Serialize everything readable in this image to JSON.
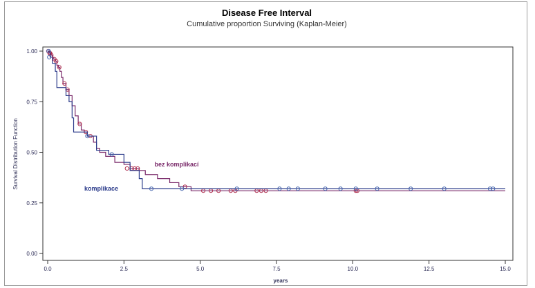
{
  "chart_data": {
    "type": "line",
    "title": "Disease Free Interval",
    "subtitle": "Cumulative proportion Surviving (Kaplan-Meier)",
    "xlabel": "years",
    "ylabel": "Survival Distribution Function",
    "xlim": [
      0,
      15
    ],
    "ylim": [
      0,
      1
    ],
    "x_ticks": [
      "0.0",
      "2.5",
      "5.0",
      "7.5",
      "10.0",
      "12.5",
      "15.0"
    ],
    "y_ticks": [
      "0.00",
      "0.25",
      "0.50",
      "0.75",
      "1.00"
    ],
    "grid": false,
    "series": [
      {
        "name": "bez komplikací",
        "color": "#7a2a6a",
        "marker_color": "#b03050",
        "steps": [
          [
            0,
            1.0
          ],
          [
            0.05,
            0.99
          ],
          [
            0.1,
            0.98
          ],
          [
            0.15,
            0.97
          ],
          [
            0.2,
            0.96
          ],
          [
            0.25,
            0.95
          ],
          [
            0.3,
            0.93
          ],
          [
            0.35,
            0.92
          ],
          [
            0.4,
            0.9
          ],
          [
            0.45,
            0.87
          ],
          [
            0.5,
            0.84
          ],
          [
            0.6,
            0.81
          ],
          [
            0.7,
            0.78
          ],
          [
            0.8,
            0.73
          ],
          [
            0.9,
            0.68
          ],
          [
            1.0,
            0.64
          ],
          [
            1.1,
            0.61
          ],
          [
            1.2,
            0.6
          ],
          [
            1.3,
            0.58
          ],
          [
            1.5,
            0.55
          ],
          [
            1.6,
            0.52
          ],
          [
            1.7,
            0.5
          ],
          [
            1.9,
            0.48
          ],
          [
            2.2,
            0.45
          ],
          [
            2.5,
            0.44
          ],
          [
            2.7,
            0.42
          ],
          [
            3.0,
            0.41
          ],
          [
            3.2,
            0.39
          ],
          [
            3.6,
            0.37
          ],
          [
            4.0,
            0.35
          ],
          [
            4.3,
            0.33
          ],
          [
            4.7,
            0.31
          ],
          [
            15.0,
            0.31
          ]
        ],
        "censored": [
          [
            0.02,
            1.0
          ],
          [
            0.06,
            0.99
          ],
          [
            0.08,
            0.99
          ],
          [
            0.12,
            0.98
          ],
          [
            0.22,
            0.96
          ],
          [
            0.28,
            0.95
          ],
          [
            0.38,
            0.92
          ],
          [
            0.55,
            0.84
          ],
          [
            0.65,
            0.81
          ],
          [
            1.05,
            0.64
          ],
          [
            1.25,
            0.6
          ],
          [
            1.4,
            0.58
          ],
          [
            2.6,
            0.42
          ],
          [
            2.75,
            0.42
          ],
          [
            2.85,
            0.42
          ],
          [
            2.95,
            0.42
          ],
          [
            4.5,
            0.33
          ],
          [
            5.1,
            0.31
          ],
          [
            5.35,
            0.31
          ],
          [
            5.6,
            0.31
          ],
          [
            6.0,
            0.31
          ],
          [
            6.15,
            0.31
          ],
          [
            6.85,
            0.31
          ],
          [
            7.0,
            0.31
          ],
          [
            7.15,
            0.31
          ],
          [
            10.1,
            0.31
          ],
          [
            10.15,
            0.31
          ]
        ]
      },
      {
        "name": "komplikace",
        "color": "#2a3a8a",
        "marker_color": "#4a6ab0",
        "steps": [
          [
            0,
            1.0
          ],
          [
            0.08,
            0.97
          ],
          [
            0.15,
            0.94
          ],
          [
            0.25,
            0.9
          ],
          [
            0.3,
            0.82
          ],
          [
            0.6,
            0.78
          ],
          [
            0.7,
            0.75
          ],
          [
            0.8,
            0.67
          ],
          [
            0.85,
            0.6
          ],
          [
            1.3,
            0.58
          ],
          [
            1.6,
            0.51
          ],
          [
            2.0,
            0.49
          ],
          [
            2.5,
            0.45
          ],
          [
            2.7,
            0.41
          ],
          [
            3.0,
            0.37
          ],
          [
            3.1,
            0.32
          ],
          [
            15.0,
            0.32
          ]
        ],
        "censored": [
          [
            0.03,
            1.0
          ],
          [
            0.05,
            0.97
          ],
          [
            1.3,
            0.58
          ],
          [
            2.1,
            0.49
          ],
          [
            3.4,
            0.32
          ],
          [
            4.4,
            0.32
          ],
          [
            6.2,
            0.32
          ],
          [
            7.6,
            0.32
          ],
          [
            7.9,
            0.32
          ],
          [
            8.2,
            0.32
          ],
          [
            9.1,
            0.32
          ],
          [
            9.6,
            0.32
          ],
          [
            10.1,
            0.32
          ],
          [
            10.8,
            0.32
          ],
          [
            11.9,
            0.32
          ],
          [
            13.0,
            0.32
          ],
          [
            14.5,
            0.32
          ],
          [
            14.6,
            0.32
          ]
        ]
      }
    ],
    "annotations": [
      {
        "text": "bez komplikací",
        "x": 3.5,
        "y": 0.44,
        "series": 0
      },
      {
        "text": "komplikace",
        "x": 1.2,
        "y": 0.32,
        "series": 1
      }
    ]
  }
}
